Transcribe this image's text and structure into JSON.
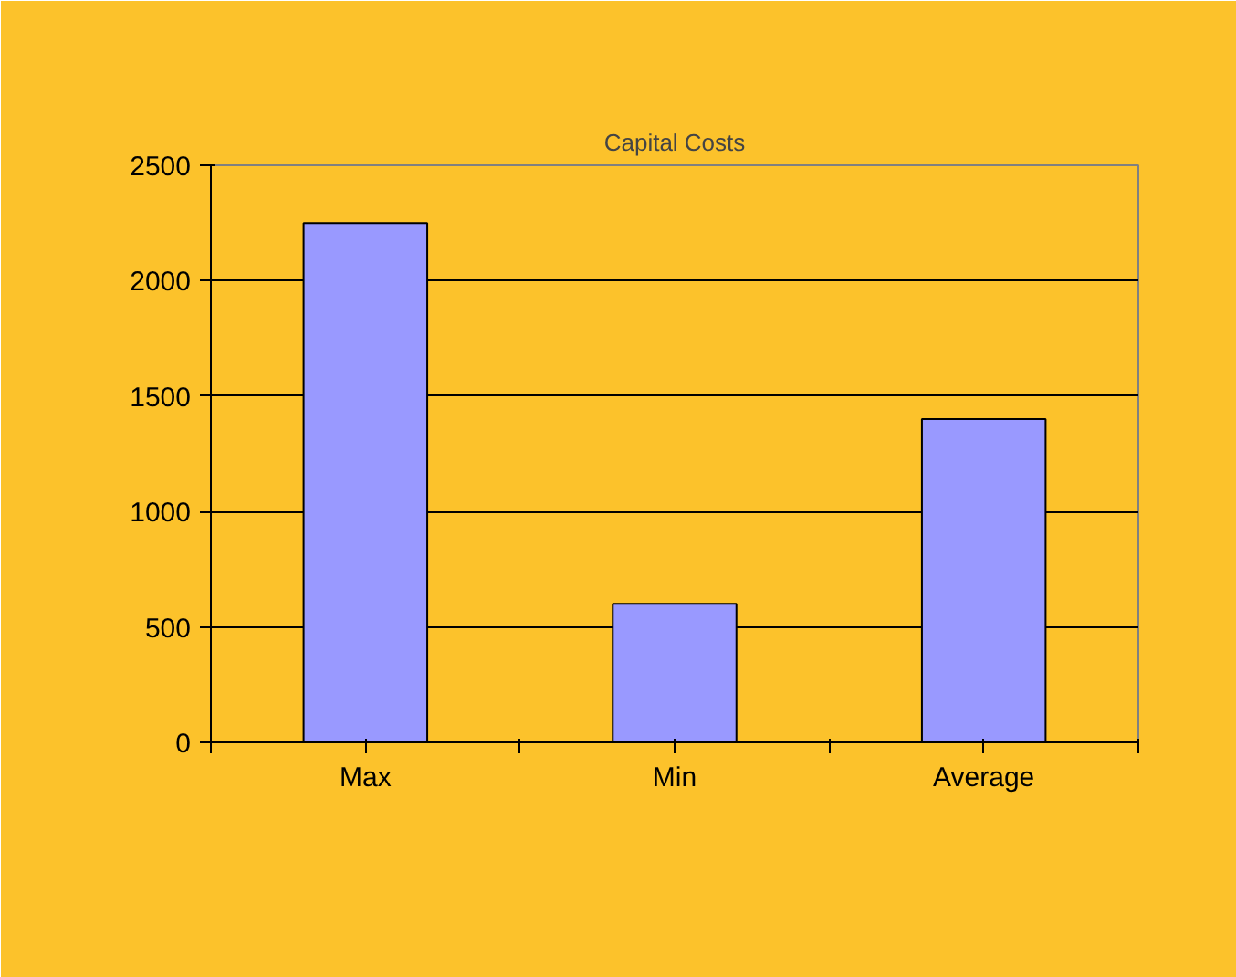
{
  "chart_data": {
    "type": "bar",
    "title": "Capital Costs",
    "categories": [
      "Max",
      "Min",
      "Average"
    ],
    "values": [
      2250,
      600,
      1400
    ],
    "color": "#9999ff",
    "ylim": [
      0,
      2500
    ],
    "yticks": [
      0,
      500,
      1000,
      1500,
      2000,
      2500
    ],
    "grid": "y"
  }
}
